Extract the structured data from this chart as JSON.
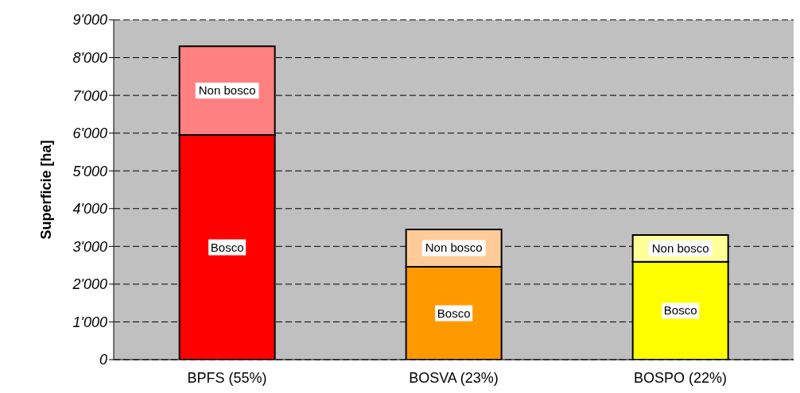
{
  "chart_data": {
    "type": "bar",
    "stacked": true,
    "ylabel": "Superficie [ha]",
    "categories": [
      "BPFS (55%)",
      "BOSVA (23%)",
      "BOSPO (22%)"
    ],
    "series": [
      {
        "name": "Bosco",
        "colors": [
          "#ff0000",
          "#ff9900",
          "#ffff00"
        ],
        "values": [
          5950,
          2460,
          2590
        ]
      },
      {
        "name": "Non bosco",
        "colors": [
          "#ff8080",
          "#ffcc99",
          "#ffff99"
        ],
        "values": [
          2350,
          990,
          710
        ]
      }
    ],
    "ylim": [
      0,
      9000
    ],
    "yticks": [
      {
        "value": 0,
        "label": "0"
      },
      {
        "value": 1000,
        "label": "1'000"
      },
      {
        "value": 2000,
        "label": "2'000"
      },
      {
        "value": 3000,
        "label": "3'000"
      },
      {
        "value": 4000,
        "label": "4'000"
      },
      {
        "value": 5000,
        "label": "5'000"
      },
      {
        "value": 6000,
        "label": "6'000"
      },
      {
        "value": 7000,
        "label": "7'000"
      },
      {
        "value": 8000,
        "label": "8'000"
      },
      {
        "value": 9000,
        "label": "9'000"
      }
    ],
    "grid": "y",
    "legend": false
  }
}
